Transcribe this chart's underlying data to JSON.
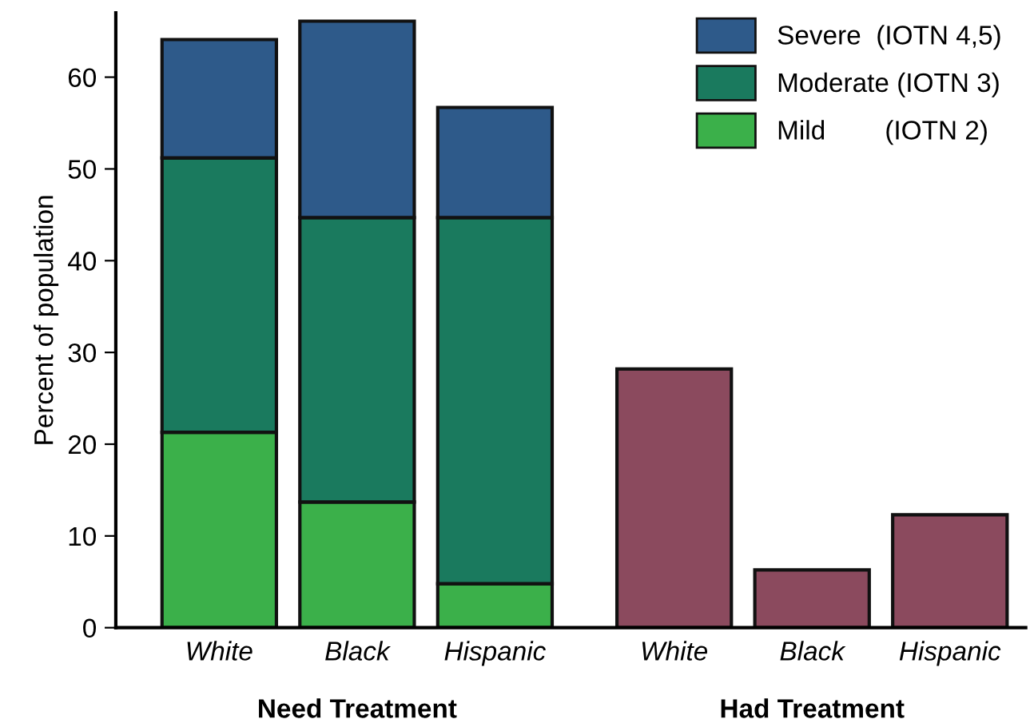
{
  "chart_data": {
    "type": "bar",
    "stacked": true,
    "ylabel": "Percent of population",
    "categories": [
      "White",
      "Black",
      "Hispanic",
      "White",
      "Black",
      "Hispanic"
    ],
    "series": [
      {
        "name": "Mild        (IOTN 2)",
        "color": "#3bb04a",
        "values": [
          21.3,
          13.7,
          4.8,
          null,
          null,
          null
        ]
      },
      {
        "name": "Moderate (IOTN 3)",
        "color": "#1a7a5e",
        "values": [
          29.9,
          31.0,
          39.9,
          null,
          null,
          null
        ]
      },
      {
        "name": "Severe  (IOTN 4,5)",
        "color": "#2e5a8a",
        "values": [
          12.9,
          21.4,
          12.0,
          null,
          null,
          null
        ]
      },
      {
        "color": "#8b4a5e",
        "values": [
          null,
          null,
          null,
          28.2,
          6.3,
          12.3
        ]
      }
    ],
    "annotations": [
      "Need Treatment",
      "Had Treatment"
    ],
    "ylim": [
      0,
      67
    ],
    "yticks": [
      0,
      10,
      20,
      30,
      40,
      50,
      60
    ],
    "grid": false,
    "legend": "top right"
  }
}
